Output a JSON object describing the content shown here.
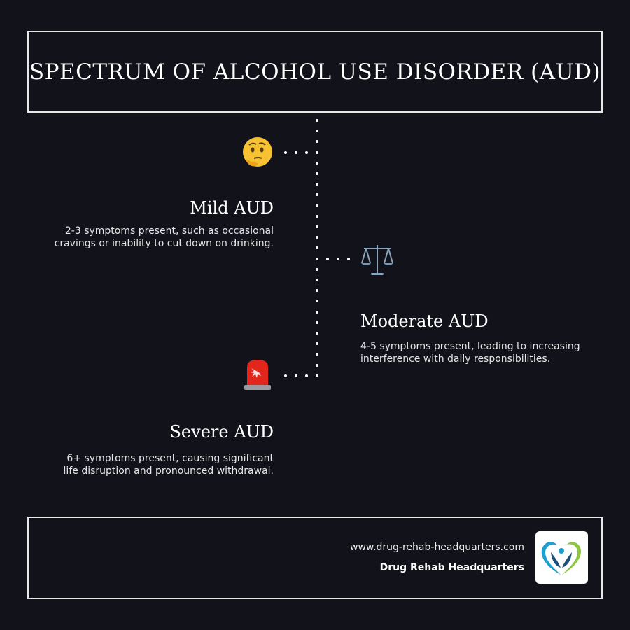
{
  "title": "SPECTRUM OF ALCOHOL USE DISORDER (AUD)",
  "stages": [
    {
      "icon": "thinking-face-icon",
      "heading": "Mild AUD",
      "description_lines": [
        "2-3 symptoms present, such as occasional",
        "cravings or inability to cut down on drinking."
      ]
    },
    {
      "icon": "balance-scale-icon",
      "heading": "Moderate AUD",
      "description_lines": [
        "4-5 symptoms present, leading to increasing",
        "interference with daily responsibilities."
      ]
    },
    {
      "icon": "police-light-icon",
      "heading": "Severe AUD",
      "description_lines": [
        "6+ symptoms present, causing significant",
        "life disruption and pronounced withdrawal."
      ]
    }
  ],
  "footer": {
    "url": "www.drug-rehab-headquarters.com",
    "organization": "Drug Rehab Headquarters"
  },
  "colors": {
    "background": "#12131a",
    "text": "#ffffff",
    "logo_blue": "#1e9fd0",
    "logo_green": "#8cc63f",
    "logo_navy": "#1d4f7a"
  }
}
